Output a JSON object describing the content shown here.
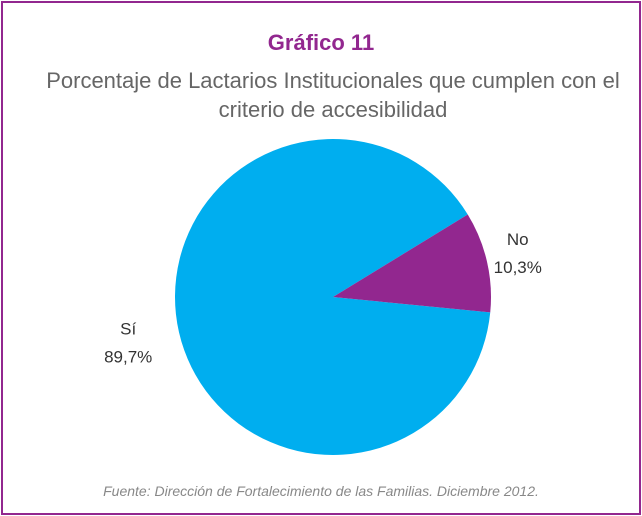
{
  "chart_data": {
    "type": "pie",
    "title": "Gráfico 11",
    "subtitle": "Porcentaje de Lactarios Institucionales que cumplen con el criterio de accesibilidad",
    "categories": [
      "Sí",
      "No"
    ],
    "values": [
      89.7,
      10.3
    ],
    "value_labels": [
      "89,7%",
      "10,3%"
    ],
    "colors": [
      "#00aeef",
      "#92278f"
    ],
    "source": "Fuente: Dirección de Fortalecimiento de las Familias. Diciembre 2012."
  }
}
